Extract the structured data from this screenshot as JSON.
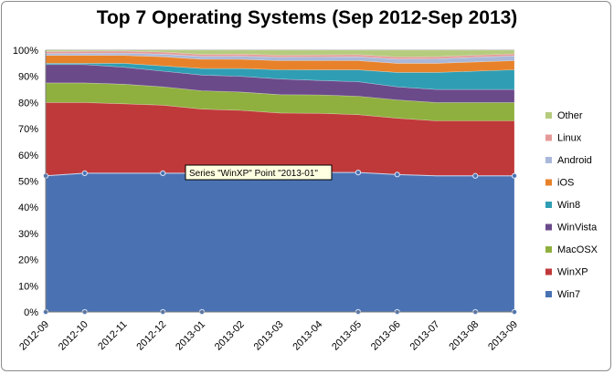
{
  "chart_data": {
    "type": "area",
    "stacked": "percent",
    "title": "Top 7 Operating Systems (Sep 2012-Sep 2013)",
    "xlabel": "",
    "ylabel": "",
    "ylim": [
      0,
      100
    ],
    "y_ticks": [
      "0%",
      "10%",
      "20%",
      "30%",
      "40%",
      "50%",
      "60%",
      "70%",
      "80%",
      "90%",
      "100%"
    ],
    "categories": [
      "2012-09",
      "2012-10",
      "2012-11",
      "2012-12",
      "2013-01",
      "2013-02",
      "2013-03",
      "2013-04",
      "2013-05",
      "2013-06",
      "2013-07",
      "2013-08",
      "2013-09"
    ],
    "series": [
      {
        "name": "Win7",
        "color": "#4a72b2",
        "values": [
          52,
          53,
          53,
          53,
          53,
          53,
          53,
          53,
          53,
          52.5,
          52,
          52,
          52
        ]
      },
      {
        "name": "WinXP",
        "color": "#c0393a",
        "values": [
          28,
          27,
          26.5,
          26,
          24.5,
          24,
          23,
          22.5,
          22,
          21.5,
          21,
          21,
          21
        ]
      },
      {
        "name": "MacOSX",
        "color": "#8fb03e",
        "values": [
          7.5,
          7.5,
          7.5,
          7,
          7,
          7,
          7,
          7,
          7,
          7,
          7,
          7,
          7
        ]
      },
      {
        "name": "WinVista",
        "color": "#6b4a8a",
        "values": [
          7,
          7,
          6.5,
          6,
          6,
          6,
          6,
          5.5,
          5.5,
          5,
          5,
          5,
          5
        ]
      },
      {
        "name": "Win8",
        "color": "#2f9eb4",
        "values": [
          0.5,
          0.5,
          1.5,
          2,
          2.5,
          3,
          3.5,
          4,
          4.5,
          5.5,
          6.5,
          7,
          7.5
        ]
      },
      {
        "name": "iOS",
        "color": "#e8822a",
        "values": [
          3,
          3,
          3,
          3.5,
          3.5,
          3.5,
          3.5,
          3.5,
          3.5,
          3.5,
          3.5,
          3.5,
          3.5
        ]
      },
      {
        "name": "Android",
        "color": "#a9b8d9",
        "values": [
          0.7,
          0.8,
          0.9,
          1,
          1.1,
          1.2,
          1.3,
          1.4,
          1.5,
          1.6,
          1.7,
          1.8,
          1.8
        ]
      },
      {
        "name": "Linux",
        "color": "#e59a98",
        "values": [
          0.8,
          0.8,
          0.8,
          0.8,
          0.8,
          0.8,
          0.8,
          0.8,
          0.8,
          0.8,
          0.8,
          0.8,
          0.8
        ]
      },
      {
        "name": "Other",
        "color": "#b5cc7e",
        "values": [
          0.5,
          0.4,
          0.3,
          0.7,
          1.6,
          1.5,
          1.9,
          1.8,
          1.7,
          2.6,
          2.5,
          1.9,
          1.4
        ]
      }
    ],
    "legend_position": "right",
    "tooltip": "Series \"WinXP\" Point \"2013-01\"",
    "grid": true
  }
}
